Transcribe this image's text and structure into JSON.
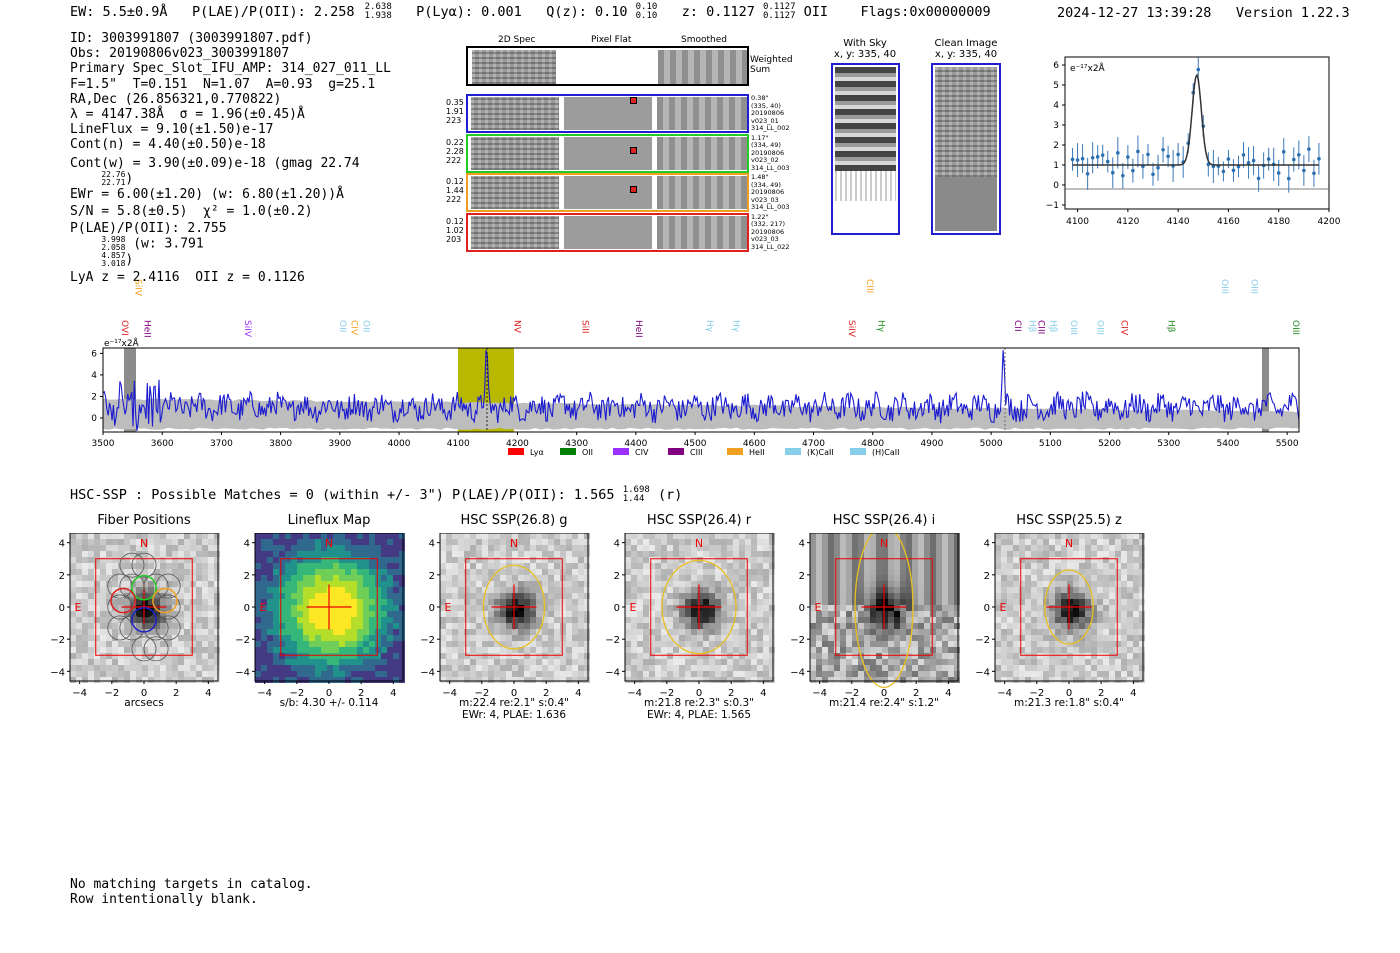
{
  "header": {
    "ew": "EW: 5.5±0.9Å",
    "plae_label": "P(LAE)/P(OII): 2.258",
    "plae_hi": "2.638",
    "plae_lo": "1.938",
    "plya": "P(Lyα): 0.001",
    "qz_label": "Q(z): 0.10",
    "qz_hi": "0.10",
    "qz_lo": "0.10",
    "z_label": "z: 0.1127",
    "z_hi": "0.1127",
    "z_lo": "0.1127",
    "z_line": "OII",
    "flags": "Flags:0x00000009",
    "timestamp": "2024-12-27 13:39:28",
    "version": "Version 1.22.3"
  },
  "info": {
    "id": "ID: 3003991807 (3003991807.pdf)",
    "obs": "Obs: 20190806v023_3003991807",
    "primary": "Primary Spec_Slot_IFU_AMP: 314_027_011_LL",
    "fiber": "F=1.5\"  T=0.151  N=1.07  A=0.93  g=25.1",
    "radec": "RA,Dec (26.856321,0.770822)",
    "lambda": "λ = 4147.38Å  σ = 1.96(±0.45)Å",
    "lineflux": "LineFlux = 9.10(±1.50)e-17",
    "contn": "Cont(n) = 4.40(±0.50)e-18",
    "contw": "Cont(w) = 3.90(±0.09)e-18 (gmag 22.74",
    "contw_hi": "22.76",
    "contw_lo": "22.71",
    "contw_end": ")",
    "ewr": "EWr = 6.00(±1.20) (w: 6.80(±1.20))Å",
    "sn": "S/N = 5.8(±0.5)  χ² = 1.0(±0.2)",
    "plae": "P(LAE)/P(OII): 2.755",
    "plae_hi": "3.998",
    "plae_lo": "2.058",
    "plae_w": " (w: 3.791",
    "plae_w_hi": "4.857",
    "plae_w_lo": "3.018",
    "plae_end": ")",
    "lya_z": "LyA z = 2.4116  OII z = 0.1126"
  },
  "cutouts": {
    "col_2d": "2D Spec",
    "col_flat": "Pixel Flat",
    "col_smooth": "Smoothed",
    "weighted_label": "Weighted\nSum",
    "rows": [
      {
        "left": [
          "0.35",
          "1.91",
          "223"
        ],
        "right": [
          "0.38\"",
          "(335, 40)",
          "20190806",
          "v023_01",
          "314_LL_002"
        ],
        "color": "#1f1fd0"
      },
      {
        "left": [
          "0.22",
          "2.28",
          "222"
        ],
        "right": [
          "1.17\"",
          "(334, 49)",
          "20190806",
          "v023_02",
          "314_LL_003"
        ],
        "color": "#22cc22"
      },
      {
        "left": [
          "0.12",
          "1.44",
          "222"
        ],
        "right": [
          "1.48\"",
          "(334, 49)",
          "20190806",
          "v023_03",
          "314_LL_003"
        ],
        "color": "#f0a020"
      },
      {
        "left": [
          "0.12",
          "1.02",
          "203"
        ],
        "right": [
          "1.22\"",
          "(332, 217)",
          "20190806",
          "v023_03",
          "314_LL_022"
        ],
        "color": "#e02020"
      }
    ],
    "with_sky_title": "With Sky",
    "with_sky_xy": "x, y: 335, 40",
    "clean_title": "Clean Image",
    "clean_xy": "x, y: 335, 40"
  },
  "zoom_plot": {
    "unit": "e⁻¹⁷x2Å",
    "xticks": [
      "4100",
      "4120",
      "4140",
      "4160",
      "4180",
      "4200"
    ],
    "yticks": [
      "6",
      "5",
      "4",
      "3",
      "2",
      "1",
      "0",
      "−1"
    ]
  },
  "full_spectrum": {
    "unit": "e⁻¹⁷x2Å",
    "xticks": [
      "3500",
      "3600",
      "3700",
      "3800",
      "3900",
      "4000",
      "4100",
      "4200",
      "4300",
      "4400",
      "4500",
      "4600",
      "4700",
      "4800",
      "4900",
      "5000",
      "5100",
      "5200",
      "5300",
      "5400",
      "5500"
    ],
    "yticks": [
      "6",
      "4",
      "2",
      "0"
    ],
    "lines_top": [
      {
        "label": "SiIV",
        "color": "#f0a020"
      },
      {
        "label": "CIII",
        "color": "#f0a020"
      },
      {
        "label": "OIII",
        "color": "#87ceeb"
      },
      {
        "label": "OIII",
        "color": "#87ceeb"
      }
    ],
    "lines_low": [
      {
        "label": "OVI",
        "color": "#e02020"
      },
      {
        "label": "HeII",
        "color": "#800080"
      },
      {
        "label": "SiIV",
        "color": "#9b30ff"
      },
      {
        "label": "OII",
        "color": "#87ceeb"
      },
      {
        "label": "CIV",
        "color": "#f0a020"
      },
      {
        "label": "OII",
        "color": "#87ceeb"
      },
      {
        "label": "NV",
        "color": "#e02020"
      },
      {
        "label": "SiII",
        "color": "#e02020"
      },
      {
        "label": "HeII",
        "color": "#800080"
      },
      {
        "label": "Hγ",
        "color": "#87ceeb"
      },
      {
        "label": "Hγ",
        "color": "#87ceeb"
      },
      {
        "label": "SiIV",
        "color": "#e02020"
      },
      {
        "label": "Hγ",
        "color": "#228b22"
      },
      {
        "label": "CII",
        "color": "#800080"
      },
      {
        "label": "Hβ",
        "color": "#87ceeb"
      },
      {
        "label": "CIII",
        "color": "#800080"
      },
      {
        "label": "Hβ",
        "color": "#87ceeb"
      },
      {
        "label": "OIII",
        "color": "#87ceeb"
      },
      {
        "label": "OIII",
        "color": "#87ceeb"
      },
      {
        "label": "CIV",
        "color": "#e02020"
      },
      {
        "label": "Hβ",
        "color": "#228b22"
      },
      {
        "label": "OIII",
        "color": "#228b22"
      }
    ],
    "legend": [
      {
        "label": "Lyα",
        "color": "#ff0000"
      },
      {
        "label": "OII",
        "color": "#008000"
      },
      {
        "label": "CIV",
        "color": "#9b30ff"
      },
      {
        "label": "CIII",
        "color": "#800080"
      },
      {
        "label": "HeII",
        "color": "#f0a020"
      },
      {
        "label": "(K)CaII",
        "color": "#87ceeb"
      },
      {
        "label": "(H)CaII",
        "color": "#87ceeb"
      }
    ]
  },
  "hsc": {
    "summary": "HSC-SSP : Possible Matches = 0 (within +/- 3\")  P(LAE)/P(OII): 1.565",
    "summary_hi": "1.698",
    "summary_lo": "1.44",
    "summary_band": "(r)",
    "axis_ticks": [
      "4",
      "2",
      "0",
      "−2",
      "−4"
    ],
    "x_ticks": [
      "−4",
      "−2",
      "0",
      "2",
      "4"
    ],
    "north": "N",
    "east": "E",
    "panels": [
      {
        "title": "Fiber Positions",
        "caption1": "arcsecs",
        "caption2": ""
      },
      {
        "title": "Lineflux Map",
        "caption1": "s/b: 4.30 +/- 0.114",
        "caption2": ""
      },
      {
        "title": "HSC SSP(26.8) g",
        "caption1": "m:22.4  re:2.1\"  s:0.4\"",
        "caption2": "EWr: 4, PLAE: 1.636"
      },
      {
        "title": "HSC SSP(26.4) r",
        "caption1": "m:21.8  re:2.3\"  s:0.3\"",
        "caption2": "EWr: 4, PLAE: 1.565"
      },
      {
        "title": "HSC SSP(26.4) i",
        "caption1": "m:21.4  re:2.4\"  s:1.2\"",
        "caption2": ""
      },
      {
        "title": "HSC SSP(25.5) z",
        "caption1": "m:21.3  re:1.8\"  s:0.4\"",
        "caption2": ""
      }
    ]
  },
  "footer": {
    "line1": "No matching targets in catalog.",
    "line2": "Row intentionally blank."
  }
}
